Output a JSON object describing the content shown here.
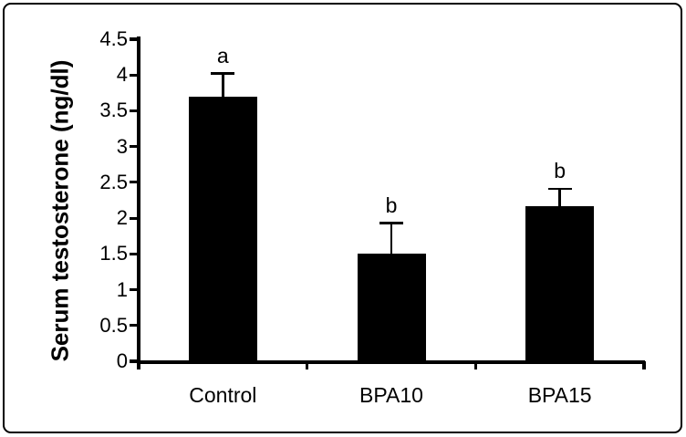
{
  "figure": {
    "background": "#ffffff",
    "frame_color": "#000000"
  },
  "chart_data": {
    "type": "bar",
    "title": "",
    "xlabel": "",
    "ylabel": "Serum testosterone (ng/dl)",
    "categories": [
      "Control",
      "BPA10",
      "BPA15"
    ],
    "values": [
      3.7,
      1.5,
      2.17
    ],
    "error_up": [
      0.32,
      0.43,
      0.24
    ],
    "sig_letters": [
      "a",
      "b",
      "b"
    ],
    "ylim": [
      0,
      4.5
    ],
    "ytick_step": 0.5,
    "ytick_labels": [
      "0",
      "0.5",
      "1",
      "1.5",
      "2",
      "2.5",
      "3",
      "3.5",
      "4",
      "4.5"
    ],
    "bar_color": "#000000",
    "axis_color": "#000000",
    "grid": false,
    "legend": "none"
  }
}
